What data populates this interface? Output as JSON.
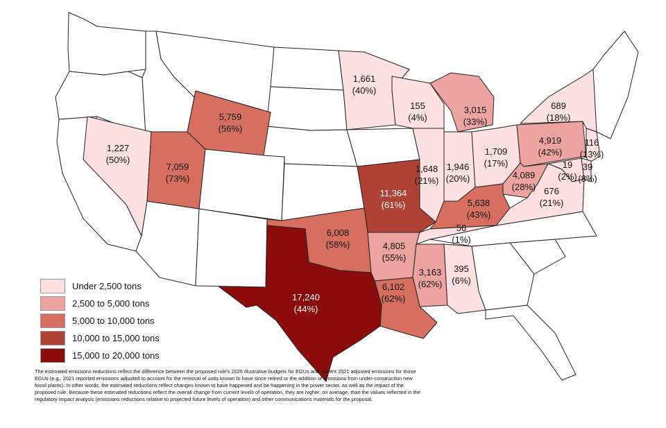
{
  "legend": {
    "items": [
      {
        "label": "Under 2,500 tons",
        "color": "#fde0e0"
      },
      {
        "label": "2,500 to 5,000 tons",
        "color": "#eda3a0"
      },
      {
        "label": "5,000 to 10,000 tons",
        "color": "#d66f5f"
      },
      {
        "label": "10,000 to 15,000 tons",
        "color": "#b04135"
      },
      {
        "label": "15,000 to 20,000 tons",
        "color": "#8c0b0b"
      }
    ]
  },
  "states": {
    "nv": {
      "value": "1,227",
      "pct": "(50%)",
      "bin": 0
    },
    "ut": {
      "value": "7,059",
      "pct": "(73%)",
      "bin": 2
    },
    "wy": {
      "value": "5,759",
      "pct": "(56%)",
      "bin": 2
    },
    "mn": {
      "value": "1,661",
      "pct": "(40%)",
      "bin": 0
    },
    "wi": {
      "value": "155",
      "pct": "(4%)",
      "bin": 0
    },
    "mi": {
      "value": "3,015",
      "pct": "(33%)",
      "bin": 1
    },
    "il": {
      "value": "1,648",
      "pct": "(21%)",
      "bin": 0
    },
    "in": {
      "value": "1,946",
      "pct": "(20%)",
      "bin": 0
    },
    "oh": {
      "value": "1,709",
      "pct": "(17%)",
      "bin": 0
    },
    "pa": {
      "value": "4,919",
      "pct": "(42%)",
      "bin": 1
    },
    "ny": {
      "value": "689",
      "pct": "(18%)",
      "bin": 0
    },
    "nj": {
      "value": "116",
      "pct": "(13%)",
      "bin": 0
    },
    "md": {
      "value": "19",
      "pct": "(2%)",
      "bin": 0
    },
    "de": {
      "value": "39",
      "pct": "(8%)",
      "bin": 0
    },
    "wv": {
      "value": "4,089",
      "pct": "(28%)",
      "bin": 1
    },
    "va": {
      "value": "676",
      "pct": "(21%)",
      "bin": 0
    },
    "ky": {
      "value": "5,638",
      "pct": "(43%)",
      "bin": 2
    },
    "tn": {
      "value": "56",
      "pct": "(1%)",
      "bin": 0
    },
    "mo": {
      "value": "11,364",
      "pct": "(61%)",
      "bin": 3
    },
    "ok": {
      "value": "6,008",
      "pct": "(58%)",
      "bin": 2
    },
    "ar": {
      "value": "4,805",
      "pct": "(55%)",
      "bin": 1
    },
    "ms": {
      "value": "3,163",
      "pct": "(62%)",
      "bin": 1
    },
    "al": {
      "value": "395",
      "pct": "(6%)",
      "bin": 0
    },
    "la": {
      "value": "6,102",
      "pct": "(62%)",
      "bin": 2
    },
    "tx": {
      "value": "17,240",
      "pct": "(44%)",
      "bin": 4
    }
  },
  "footnote": "The estimated emissions reductions reflect the difference between the proposed rule's 2026 illustrative budgets for EGUs and current 2021 adjusted emissions for those EGUs (e.g., 2021 reported emissions adjusted to account for the removal of units known to have since retired or the addition of emissions from under-construction new fossil plants). In other words, the estimated reductions reflect changes known to have happened and be happening in the power sector, as well as the impact of the proposed rule. Because these estimated reductions reflect the overall change from current levels of operation, they are higher, on average, than the values reflected in the regulatory impact analysis (emissions reductions relative to projected future levels of operation) and other communications materials for the proposal."
}
